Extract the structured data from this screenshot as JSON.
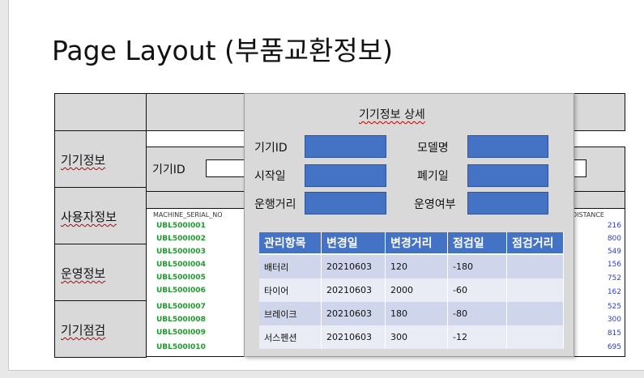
{
  "page": {
    "title": "Page Layout (부품교환정보)"
  },
  "sidebar": {
    "items": [
      {
        "label": "기기정보"
      },
      {
        "label": "사용자정보"
      },
      {
        "label": "운영정보"
      },
      {
        "label": "기기점검"
      }
    ]
  },
  "background_form": {
    "device_id_label": "기기ID",
    "list_header_serial": "MACHINE_SERIAL_NO",
    "list_header_distance": "DISTANCE",
    "serials": [
      "UBL500I001",
      "UBL500I002",
      "UBL500I003",
      "UBL500I004",
      "UBL500I005",
      "UBL500I006",
      "UBL500I007",
      "UBL500I008",
      "UBL500I009",
      "UBL500I010"
    ],
    "distances": [
      "216",
      "800",
      "549",
      "156",
      "752",
      "162",
      "525",
      "300",
      "815",
      "695"
    ]
  },
  "popup": {
    "title": "기기정보 상세",
    "fields": {
      "device_id": {
        "label": "기기ID",
        "value": ""
      },
      "model_name": {
        "label": "모델명",
        "value": ""
      },
      "start_date": {
        "label": "시작일",
        "value": ""
      },
      "disposal_date": {
        "label": "폐기일",
        "value": ""
      },
      "operating_distance": {
        "label": "운행거리",
        "value": ""
      },
      "operation_status": {
        "label": "운영여부",
        "value": ""
      }
    },
    "table": {
      "headers": [
        "관리항목",
        "변경일",
        "변경거리",
        "점검일",
        "점검거리"
      ],
      "rows": [
        [
          "배터리",
          "20210603",
          "120",
          "-180",
          ""
        ],
        [
          "타이어",
          "20210603",
          "2000",
          "-60",
          ""
        ],
        [
          "브레이크",
          "20210603",
          "180",
          "-80",
          ""
        ],
        [
          "서스펜션",
          "20210603",
          "300",
          "-12",
          ""
        ]
      ]
    }
  },
  "colors": {
    "field_blue": "#4472c4",
    "serial_green": "#1e9a2b",
    "distance_blue": "#2e3bd6",
    "panel_gray": "#d9d9d9"
  }
}
